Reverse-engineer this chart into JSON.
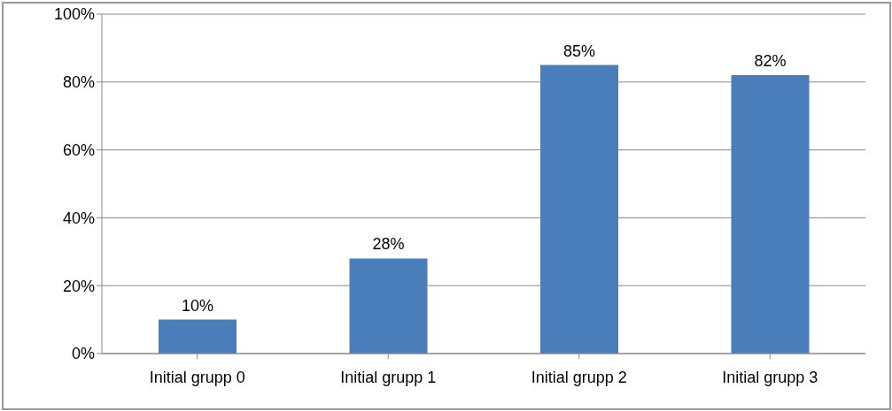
{
  "chart_data": {
    "type": "bar",
    "categories": [
      "Initial grupp 0",
      "Initial grupp 1",
      "Initial grupp 2",
      "Initial grupp 3"
    ],
    "values": [
      10,
      28,
      85,
      82
    ],
    "color": "#4a7ebb",
    "value_labels": [
      "10%",
      "28%",
      "85%",
      "82%"
    ],
    "ylim": [
      0,
      100
    ],
    "yticks": [
      {
        "value": 0,
        "label": "0%"
      },
      {
        "value": 20,
        "label": "20%"
      },
      {
        "value": 40,
        "label": "40%"
      },
      {
        "value": 60,
        "label": "60%"
      },
      {
        "value": 80,
        "label": "80%"
      },
      {
        "value": 100,
        "label": "100%"
      }
    ],
    "grid": "y",
    "legend": false
  }
}
